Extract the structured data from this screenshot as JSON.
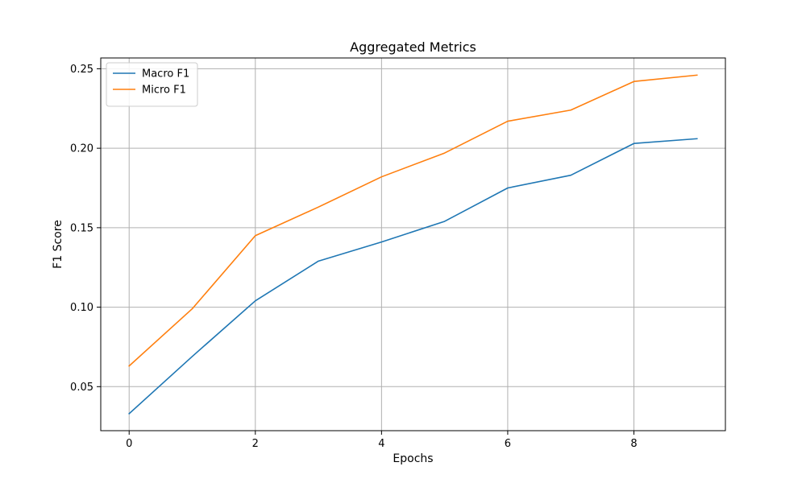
{
  "chart_data": {
    "type": "line",
    "title": "Aggregated Metrics",
    "xlabel": "Epochs",
    "ylabel": "F1 Score",
    "x": [
      0,
      1,
      2,
      3,
      4,
      5,
      6,
      7,
      8,
      9
    ],
    "series": [
      {
        "name": "Macro F1",
        "color": "#1f77b4",
        "values": [
          0.033,
          0.069,
          0.104,
          0.129,
          0.141,
          0.154,
          0.175,
          0.183,
          0.203,
          0.206
        ]
      },
      {
        "name": "Micro F1",
        "color": "#ff7f0e",
        "values": [
          0.063,
          0.099,
          0.145,
          0.163,
          0.182,
          0.197,
          0.217,
          0.224,
          0.242,
          0.246
        ]
      }
    ],
    "xlim": [
      -0.45,
      9.45
    ],
    "ylim": [
      0.0223,
      0.2568
    ],
    "xticks": [
      0,
      2,
      4,
      6,
      8
    ],
    "xtick_labels": [
      "0",
      "2",
      "4",
      "6",
      "8"
    ],
    "yticks": [
      0.05,
      0.1,
      0.15,
      0.2,
      0.25
    ],
    "ytick_labels": [
      "0.05",
      "0.10",
      "0.15",
      "0.20",
      "0.25"
    ],
    "grid": true,
    "legend_position": "top-left"
  }
}
